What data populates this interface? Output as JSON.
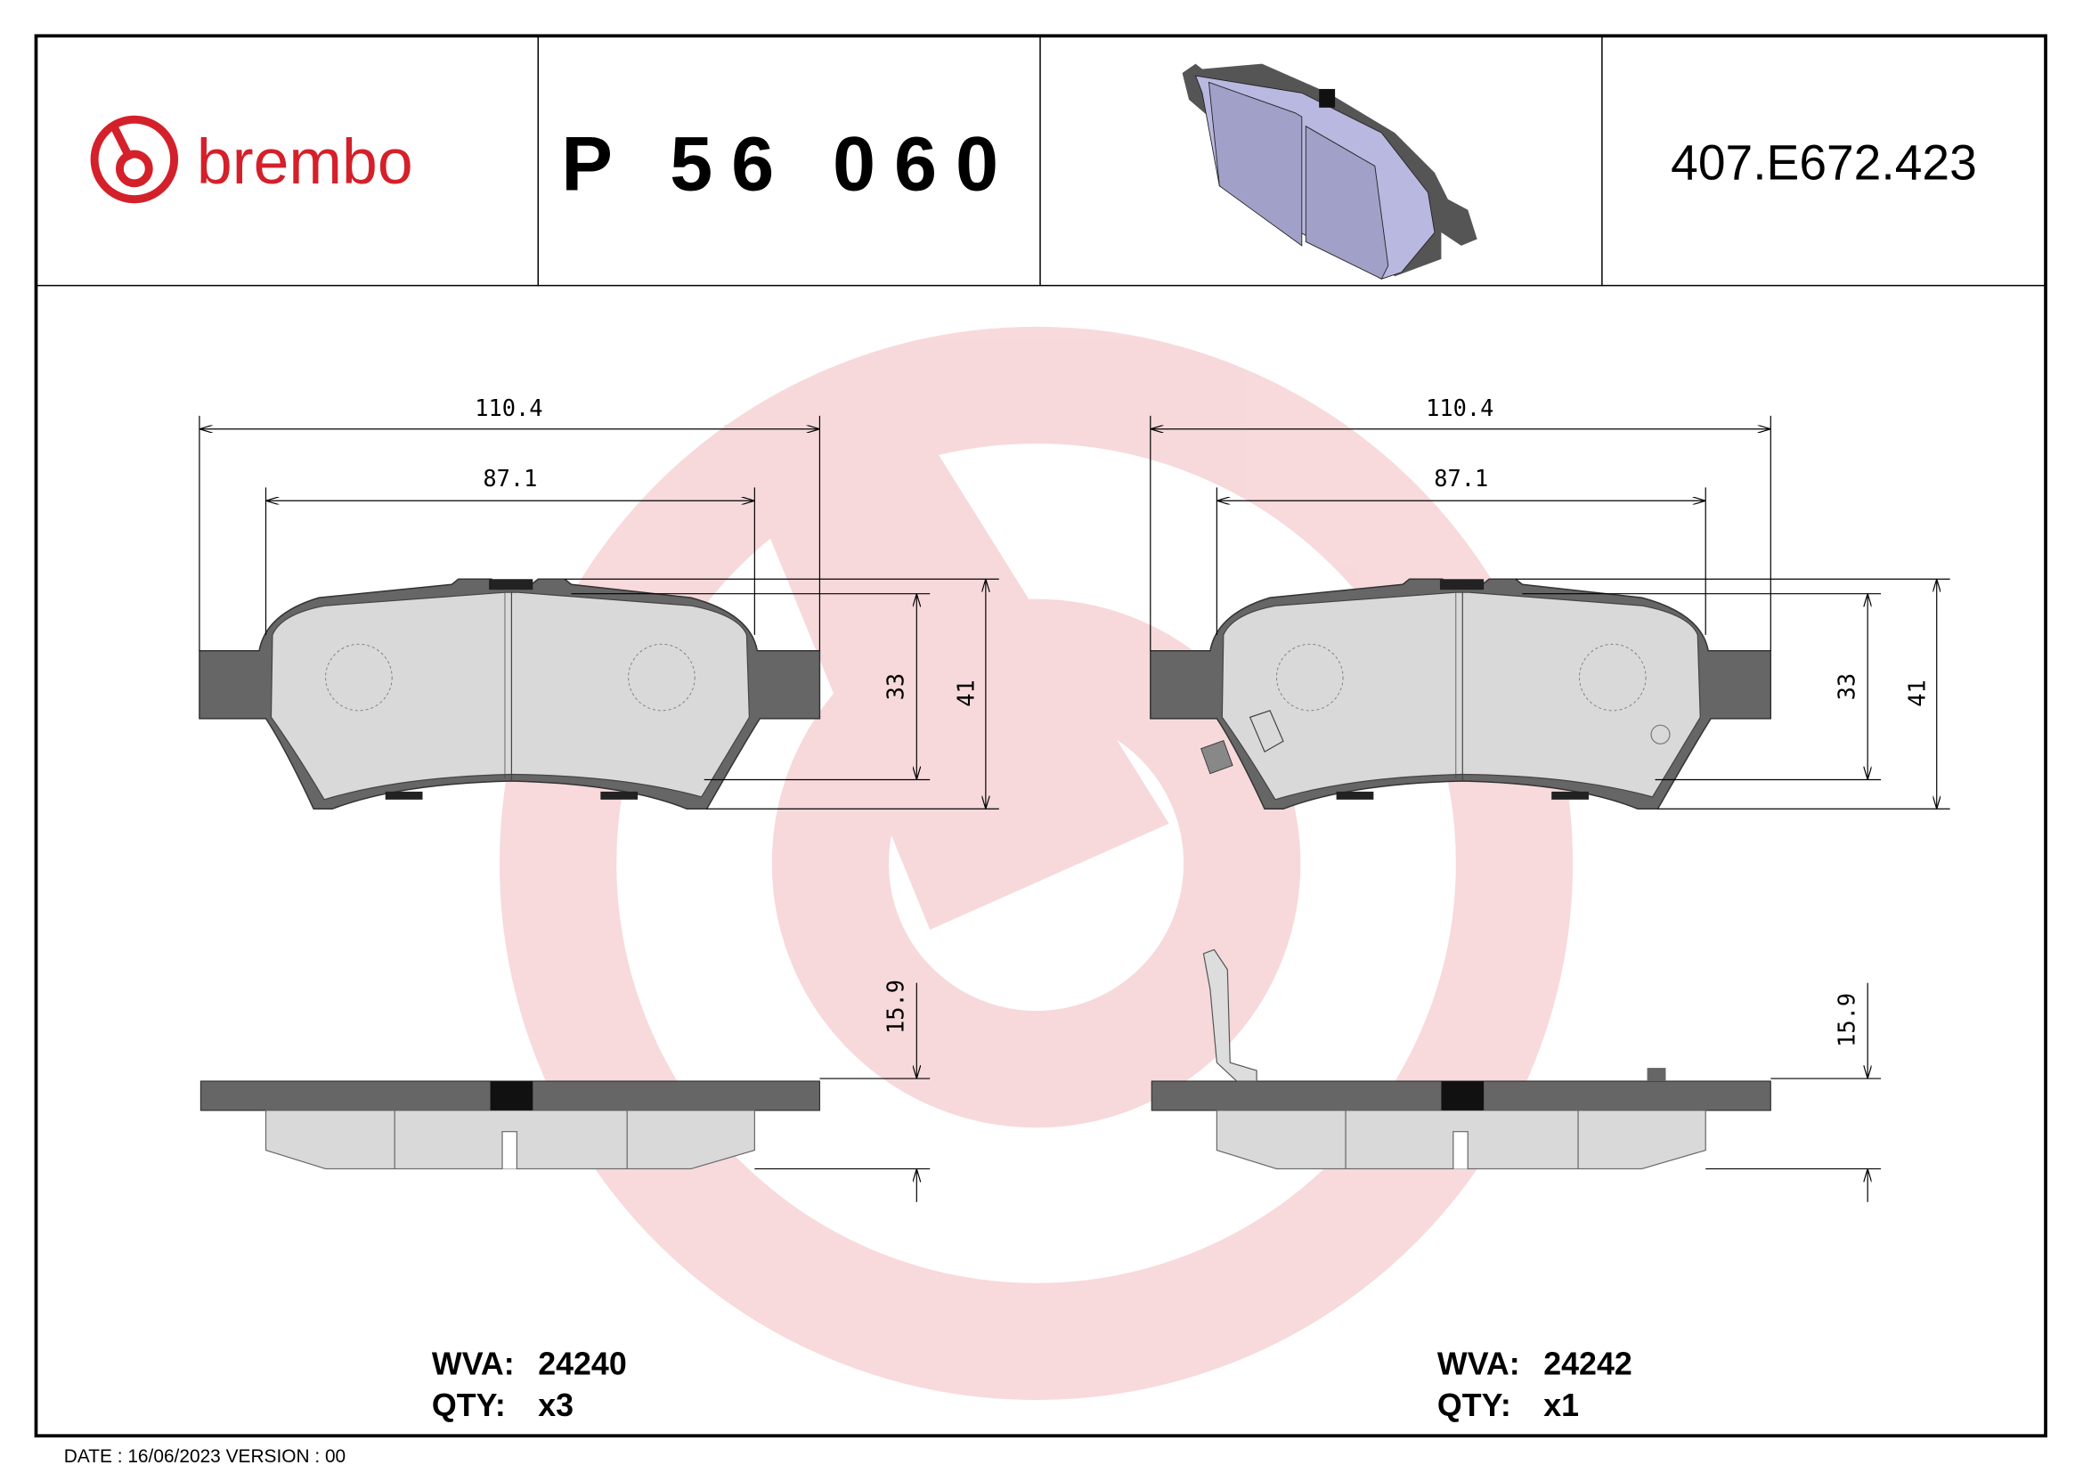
{
  "header": {
    "brand": "brembo",
    "part_number": "P 56 060",
    "reference": "407.E672.423",
    "brand_color": "#d4202a"
  },
  "left_pad": {
    "overall_width": "110.4",
    "inner_width": "87.1",
    "height_inner": "33",
    "height_outer": "41",
    "thickness": "15.9",
    "wva_label": "WVA:",
    "wva": "24240",
    "qty_label": "QTY:",
    "qty": "x3"
  },
  "right_pad": {
    "overall_width": "110.4",
    "inner_width": "87.1",
    "height_inner": "33",
    "height_outer": "41",
    "thickness": "15.9",
    "wva_label": "WVA:",
    "wva": "24242",
    "qty_label": "QTY:",
    "qty": "x1"
  },
  "footer": {
    "date_text": "DATE : 16/06/2023 VERSION : 00"
  },
  "colors": {
    "backing_plate": "#666666",
    "friction": "#d9d9d9",
    "render_pad": "#a0a0c8",
    "watermark": "#f2c4c8"
  }
}
